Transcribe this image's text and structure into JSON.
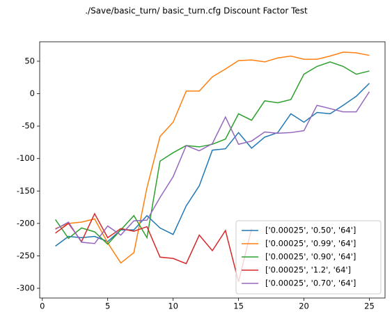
{
  "chart_data": {
    "type": "line",
    "title": "./Save/basic_turn/ basic_turn.cfg Discount Factor Test",
    "x": [
      1,
      2,
      3,
      4,
      5,
      6,
      7,
      8,
      9,
      10,
      11,
      12,
      13,
      14,
      15,
      16,
      17,
      18,
      19,
      20,
      21,
      22,
      23,
      24,
      25
    ],
    "series": [
      {
        "name": "['0.00025', '0.50', '64']",
        "color": "#1f77b4",
        "values": [
          -235,
          -220,
          -222,
          -220,
          -228,
          -210,
          -210,
          -188,
          -207,
          -217,
          -173,
          -142,
          -87,
          -85,
          -60,
          -84,
          -67,
          -60,
          -31,
          -44,
          -29,
          -31,
          -18,
          -4,
          16
        ]
      },
      {
        "name": "['0.00025', '0.99', '64']",
        "color": "#ff7f0e",
        "values": [
          -208,
          -200,
          -198,
          -193,
          -230,
          -261,
          -245,
          -145,
          -66,
          -44,
          4,
          4,
          26,
          38,
          51,
          52,
          49,
          55,
          58,
          53,
          53,
          58,
          64,
          63,
          59
        ]
      },
      {
        "name": "['0.00025', '0.90', '64']",
        "color": "#2ca02c",
        "values": [
          -194,
          -223,
          -207,
          -213,
          -232,
          -210,
          -188,
          -222,
          -104,
          -91,
          -80,
          -82,
          -78,
          -70,
          -31,
          -41,
          -11,
          -14,
          -9,
          30,
          42,
          49,
          42,
          30,
          35
        ]
      },
      {
        "name": "['0.00025', '1.2', '64']",
        "color": "#d62728",
        "values": [
          -215,
          -200,
          -228,
          -185,
          -222,
          -208,
          -212,
          -205,
          -252,
          -254,
          -262,
          -218,
          -242,
          -211,
          -290,
          -208,
          null,
          null,
          null,
          null,
          null,
          null,
          null,
          null,
          null
        ]
      },
      {
        "name": "['0.00025', '0.70', '64']",
        "color": "#9467bd",
        "values": [
          -209,
          -198,
          -229,
          -231,
          -204,
          -218,
          -196,
          -195,
          -160,
          -128,
          -80,
          -88,
          -77,
          -36,
          -78,
          -73,
          -59,
          -61,
          -60,
          -57,
          -18,
          -23,
          -28,
          -28,
          3
        ]
      }
    ],
    "xlim": [
      -0.2,
      26.2
    ],
    "xticks": [
      0,
      5,
      10,
      15,
      20,
      25
    ],
    "ylim": [
      -315,
      80
    ],
    "yticks": [
      -300,
      -250,
      -200,
      -150,
      -100,
      -50,
      0,
      50
    ],
    "legend": "lower right"
  }
}
